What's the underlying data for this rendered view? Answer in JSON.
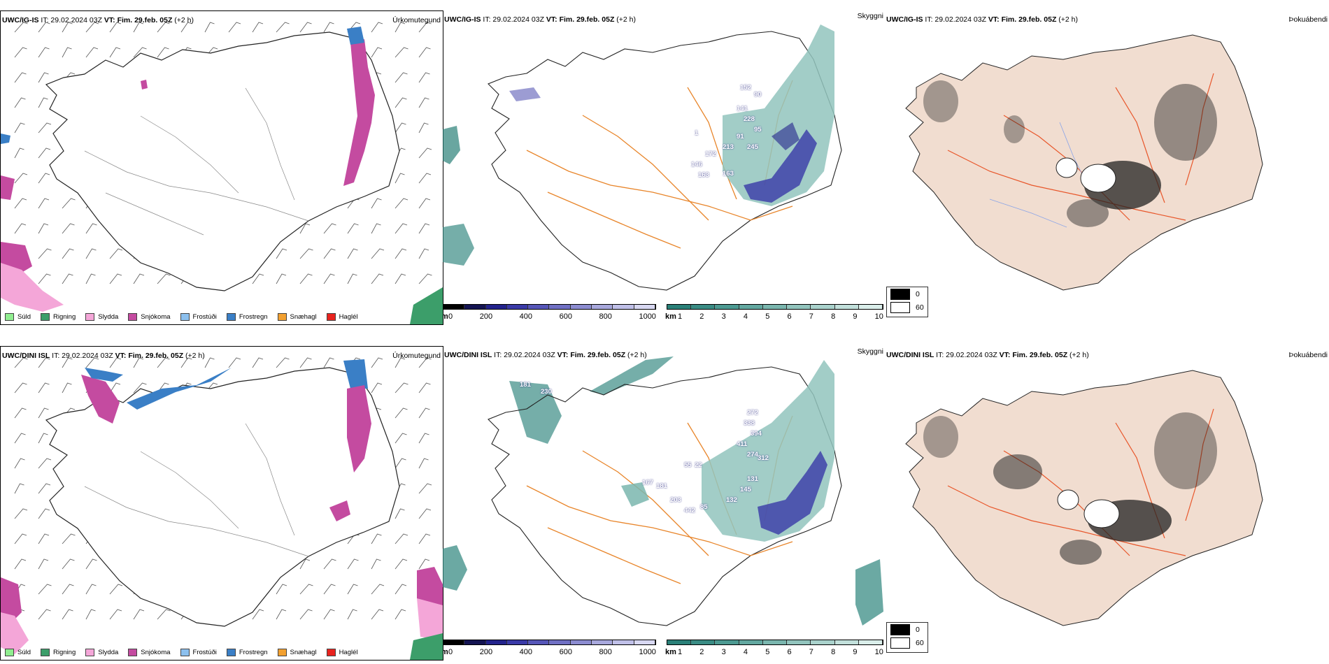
{
  "rows": [
    {
      "model": "UWC/IG-IS",
      "it_label": "IT: 29.02.2024 03Z",
      "vt_label": "VT: Fim. 29.feb. 05Z",
      "lead": "(+2 h)",
      "precip_title": "Úrkomutegund",
      "vis_title": "Skyggni",
      "fog_title": "Þokuábendi",
      "vis_labels": [
        "152",
        "90",
        "141",
        "228",
        "95",
        "91",
        "245",
        "213",
        "172",
        "146",
        "163",
        "163",
        "1"
      ]
    },
    {
      "model": "UWC/DINI ISL",
      "it_label": "IT: 29.02.2024 03Z",
      "vt_label": "VT: Fim. 29.feb. 05Z",
      "lead": "(+2 h)",
      "precip_title": "Úrkomutegund",
      "vis_title": "Skyggni",
      "fog_title": "Þokuábendi",
      "vis_labels": [
        "272",
        "338",
        "394",
        "411",
        "274",
        "312",
        "55",
        "22",
        "167",
        "181",
        "203",
        "442",
        "85",
        "132",
        "145",
        "131",
        "181",
        "230"
      ]
    }
  ],
  "precip_legend": [
    {
      "label": "Súld",
      "color": "#90ee90"
    },
    {
      "label": "Rigning",
      "color": "#3c9e6a"
    },
    {
      "label": "Slydda",
      "color": "#f4a6d8"
    },
    {
      "label": "Snjókoma",
      "color": "#c44ba0"
    },
    {
      "label": "Frostúði",
      "color": "#8cc0ee"
    },
    {
      "label": "Frostregn",
      "color": "#3a7fc6"
    },
    {
      "label": "Snæhagl",
      "color": "#f2a030"
    },
    {
      "label": "Haglél",
      "color": "#e8231e"
    }
  ],
  "vis_scale_m": {
    "unit": "m",
    "ticks": [
      "0",
      "200",
      "400",
      "600",
      "800",
      "1000"
    ],
    "colors": [
      "#000000",
      "#141452",
      "#23238c",
      "#3a3aa8",
      "#5656b8",
      "#7070c4",
      "#8c8cd0",
      "#a8a8dc",
      "#c0c0e8",
      "#d8d8f2"
    ]
  },
  "vis_scale_km": {
    "unit": "km",
    "ticks": [
      "1",
      "2",
      "3",
      "4",
      "5",
      "6",
      "7",
      "8",
      "9",
      "10"
    ],
    "colors": [
      "#2a8078",
      "#3a8c84",
      "#4d9a92",
      "#63a8a0",
      "#7ab6ae",
      "#92c4bd",
      "#aad2cc",
      "#c2e0db",
      "#daeeea"
    ]
  },
  "fog_legend": [
    {
      "label": "0",
      "color": "#000000"
    },
    {
      "label": "60",
      "color": "#ffffff"
    }
  ]
}
